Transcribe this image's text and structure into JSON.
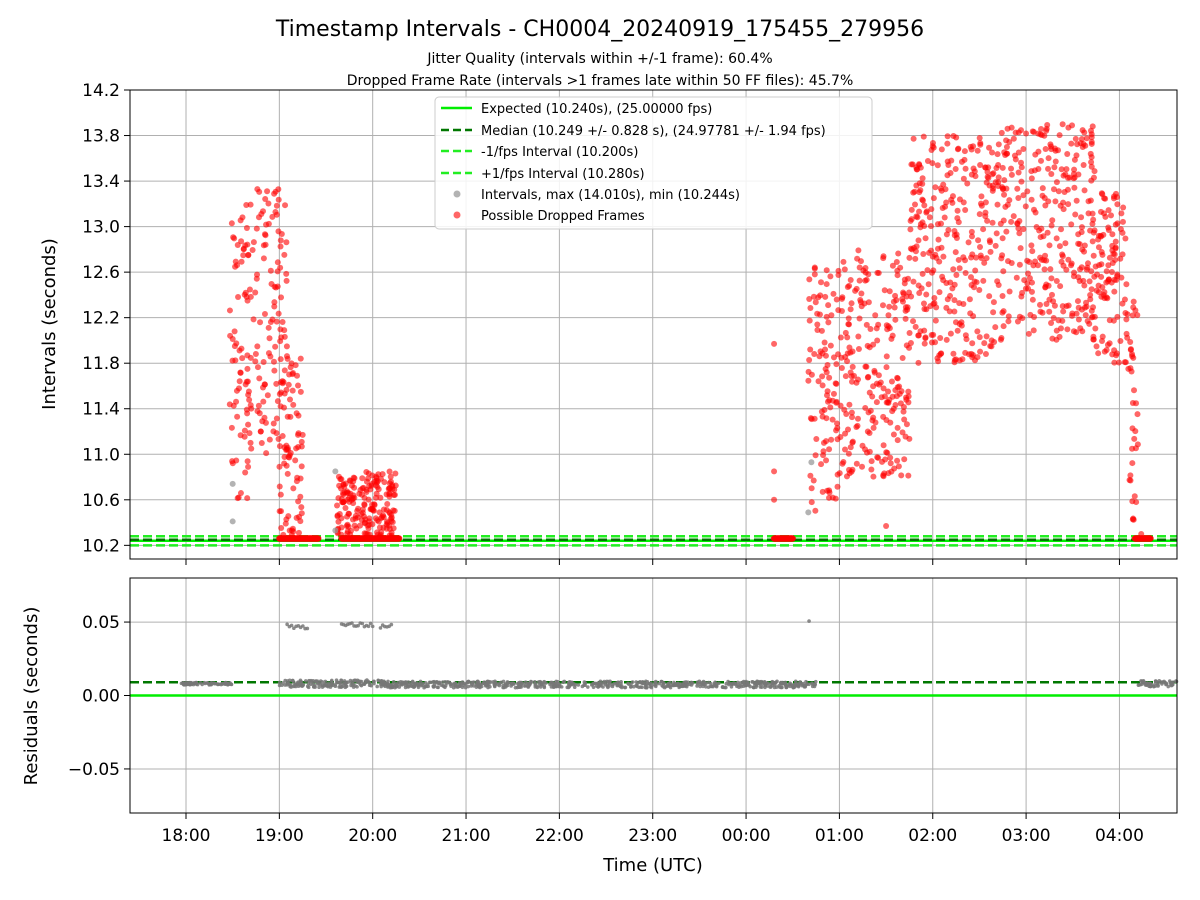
{
  "title": "Timestamp Intervals - CH0004_20240919_175455_279956",
  "subtitle_1": "Jitter Quality (intervals within +/-1 frame): 60.4%",
  "subtitle_2": "Dropped Frame Rate (intervals >1 frames late within 50 FF files): 45.7%",
  "colors": {
    "expected": "#00ee00",
    "median": "#007700",
    "interval_lines": "#22ee22",
    "intervals": "#999999",
    "dropped": "#ff0000",
    "residuals": "#777777",
    "grid": "#b0b0b0"
  },
  "chart_data": [
    {
      "type": "scatter",
      "panel": "intervals",
      "xlabel": "",
      "ylabel": "Intervals (seconds)",
      "xlim": [
        "2024-09-19T17:24:00Z",
        "2024-09-20T04:37:00Z"
      ],
      "ylim": [
        10.08,
        14.2
      ],
      "yticks": [
        "10.2",
        "10.6",
        "11.0",
        "11.4",
        "11.8",
        "12.2",
        "12.6",
        "13.0",
        "13.4",
        "13.8",
        "14.2"
      ],
      "grid": true,
      "legend_position": "top-center",
      "legend": [
        "Expected (10.240s), (25.00000 fps)",
        "Median (10.249 +/- 0.828 s), (24.97781 +/- 1.94 fps)",
        "-1/fps Interval (10.200s)",
        "+1/fps Interval (10.280s)",
        "Intervals, max (14.010s), min (10.244s)",
        "Possible Dropped Frames"
      ],
      "lines": [
        {
          "name": "Expected (10.240s), (25.00000 fps)",
          "y": 10.24,
          "style": "solid"
        },
        {
          "name": "Median (10.249 +/- 0.828 s), (24.97781 +/- 1.94 fps)",
          "y": 10.249,
          "style": "dashed"
        },
        {
          "name": "-1/fps Interval (10.200s)",
          "y": 10.2,
          "style": "dashed"
        },
        {
          "name": "+1/fps Interval (10.280s)",
          "y": 10.28,
          "style": "dashed"
        }
      ],
      "series": [
        {
          "name": "Intervals, max (14.010s), min (10.244s)",
          "points": [
            {
              "x": "2024-09-19T18:30:00Z",
              "y": 10.41
            },
            {
              "x": "2024-09-19T18:30:00Z",
              "y": 10.74
            },
            {
              "x": "2024-09-19T19:36:00Z",
              "y": 10.85
            },
            {
              "x": "2024-09-19T19:36:00Z",
              "y": 10.33
            },
            {
              "x": "2024-09-20T00:42:00Z",
              "y": 10.93
            },
            {
              "x": "2024-09-20T00:40:00Z",
              "y": 10.49
            }
          ]
        },
        {
          "name": "Possible Dropped Frames",
          "clusters": [
            {
              "x_start": "2024-09-19T18:28:00Z",
              "x_end": "2024-09-19T18:45:00Z",
              "y_min": 10.6,
              "y_max": 13.2
            },
            {
              "x_start": "2024-09-19T18:45:00Z",
              "x_end": "2024-09-19T19:05:00Z",
              "y_min": 11.0,
              "y_max": 13.35
            },
            {
              "x_start": "2024-09-19T19:00:00Z",
              "x_end": "2024-09-19T19:15:00Z",
              "y_min": 10.28,
              "y_max": 11.9
            },
            {
              "x_start": "2024-09-19T19:37:00Z",
              "x_end": "2024-09-19T20:15:00Z",
              "y_min": 10.28,
              "y_max": 10.85
            },
            {
              "x_start": "2024-09-20T00:40:00Z",
              "x_end": "2024-09-20T01:00:00Z",
              "y_min": 10.5,
              "y_max": 12.7
            },
            {
              "x_start": "2024-09-20T01:00:00Z",
              "x_end": "2024-09-20T01:45:00Z",
              "y_min": 10.8,
              "y_max": 12.8
            },
            {
              "x_start": "2024-09-20T01:45:00Z",
              "x_end": "2024-09-20T02:40:00Z",
              "y_min": 11.8,
              "y_max": 13.8
            },
            {
              "x_start": "2024-09-20T02:40:00Z",
              "x_end": "2024-09-20T03:45:00Z",
              "y_min": 12.0,
              "y_max": 13.9
            },
            {
              "x_start": "2024-09-20T03:45:00Z",
              "x_end": "2024-09-20T04:05:00Z",
              "y_min": 11.8,
              "y_max": 13.3
            },
            {
              "x_start": "2024-09-20T04:05:00Z",
              "x_end": "2024-09-20T04:12:00Z",
              "y_min": 10.4,
              "y_max": 12.4
            }
          ],
          "band_at_lower_limit": [
            {
              "x_start": "2024-09-19T19:00:00Z",
              "x_end": "2024-09-19T19:25:00Z",
              "y": 10.26
            },
            {
              "x_start": "2024-09-19T19:40:00Z",
              "x_end": "2024-09-19T20:17:00Z",
              "y": 10.26
            },
            {
              "x_start": "2024-09-20T00:18:00Z",
              "x_end": "2024-09-20T00:30:00Z",
              "y": 10.26
            },
            {
              "x_start": "2024-09-20T04:10:00Z",
              "x_end": "2024-09-20T04:20:00Z",
              "y": 10.26
            }
          ],
          "outliers": [
            {
              "x": "2024-09-20T00:18:00Z",
              "y": 11.97
            },
            {
              "x": "2024-09-20T00:18:00Z",
              "y": 10.85
            },
            {
              "x": "2024-09-20T00:18:00Z",
              "y": 10.6
            },
            {
              "x": "2024-09-19T19:12:00Z",
              "y": 11.17
            },
            {
              "x": "2024-09-19T19:15:00Z",
              "y": 11.17
            },
            {
              "x": "2024-09-20T01:30:00Z",
              "y": 10.37
            },
            {
              "x": "2024-09-20T04:14:00Z",
              "y": 10.3
            }
          ]
        }
      ]
    },
    {
      "type": "scatter",
      "panel": "residuals",
      "xlabel": "Time (UTC)",
      "ylabel": "Residuals (seconds)",
      "xlim": [
        "2024-09-19T17:24:00Z",
        "2024-09-20T04:37:00Z"
      ],
      "ylim": [
        -0.08,
        0.08
      ],
      "xticks": [
        "18:00",
        "19:00",
        "20:00",
        "21:00",
        "22:00",
        "23:00",
        "00:00",
        "01:00",
        "02:00",
        "03:00",
        "04:00"
      ],
      "yticks": [
        "−0.05",
        "0.00",
        "0.05"
      ],
      "grid": true,
      "lines": [
        {
          "name": "Expected",
          "y": 0.0,
          "style": "solid"
        },
        {
          "name": "Median",
          "y": 0.009,
          "style": "dashed"
        }
      ],
      "bands": [
        {
          "x_start": "2024-09-19T17:57:00Z",
          "x_end": "2024-09-19T18:30:00Z",
          "y": 0.008,
          "spread": 0.0008
        },
        {
          "x_start": "2024-09-19T19:00:00Z",
          "x_end": "2024-09-19T20:10:00Z",
          "y": 0.008,
          "spread": 0.0025
        },
        {
          "x_start": "2024-09-19T20:05:00Z",
          "x_end": "2024-09-20T00:45:00Z",
          "y": 0.0075,
          "spread": 0.0022
        },
        {
          "x_start": "2024-09-20T04:12:00Z",
          "x_end": "2024-09-20T04:37:00Z",
          "y": 0.008,
          "spread": 0.002
        }
      ],
      "high_points": [
        {
          "x_start": "2024-09-19T19:05:00Z",
          "x_end": "2024-09-19T19:18:00Z",
          "y": 0.047
        },
        {
          "x_start": "2024-09-19T19:40:00Z",
          "x_end": "2024-09-19T20:00:00Z",
          "y": 0.048
        },
        {
          "x_start": "2024-09-19T20:05:00Z",
          "x_end": "2024-09-19T20:12:00Z",
          "y": 0.047
        },
        {
          "x_start": "2024-09-20T00:40:00Z",
          "x_end": "2024-09-20T00:41:00Z",
          "y": 0.05
        }
      ]
    }
  ]
}
